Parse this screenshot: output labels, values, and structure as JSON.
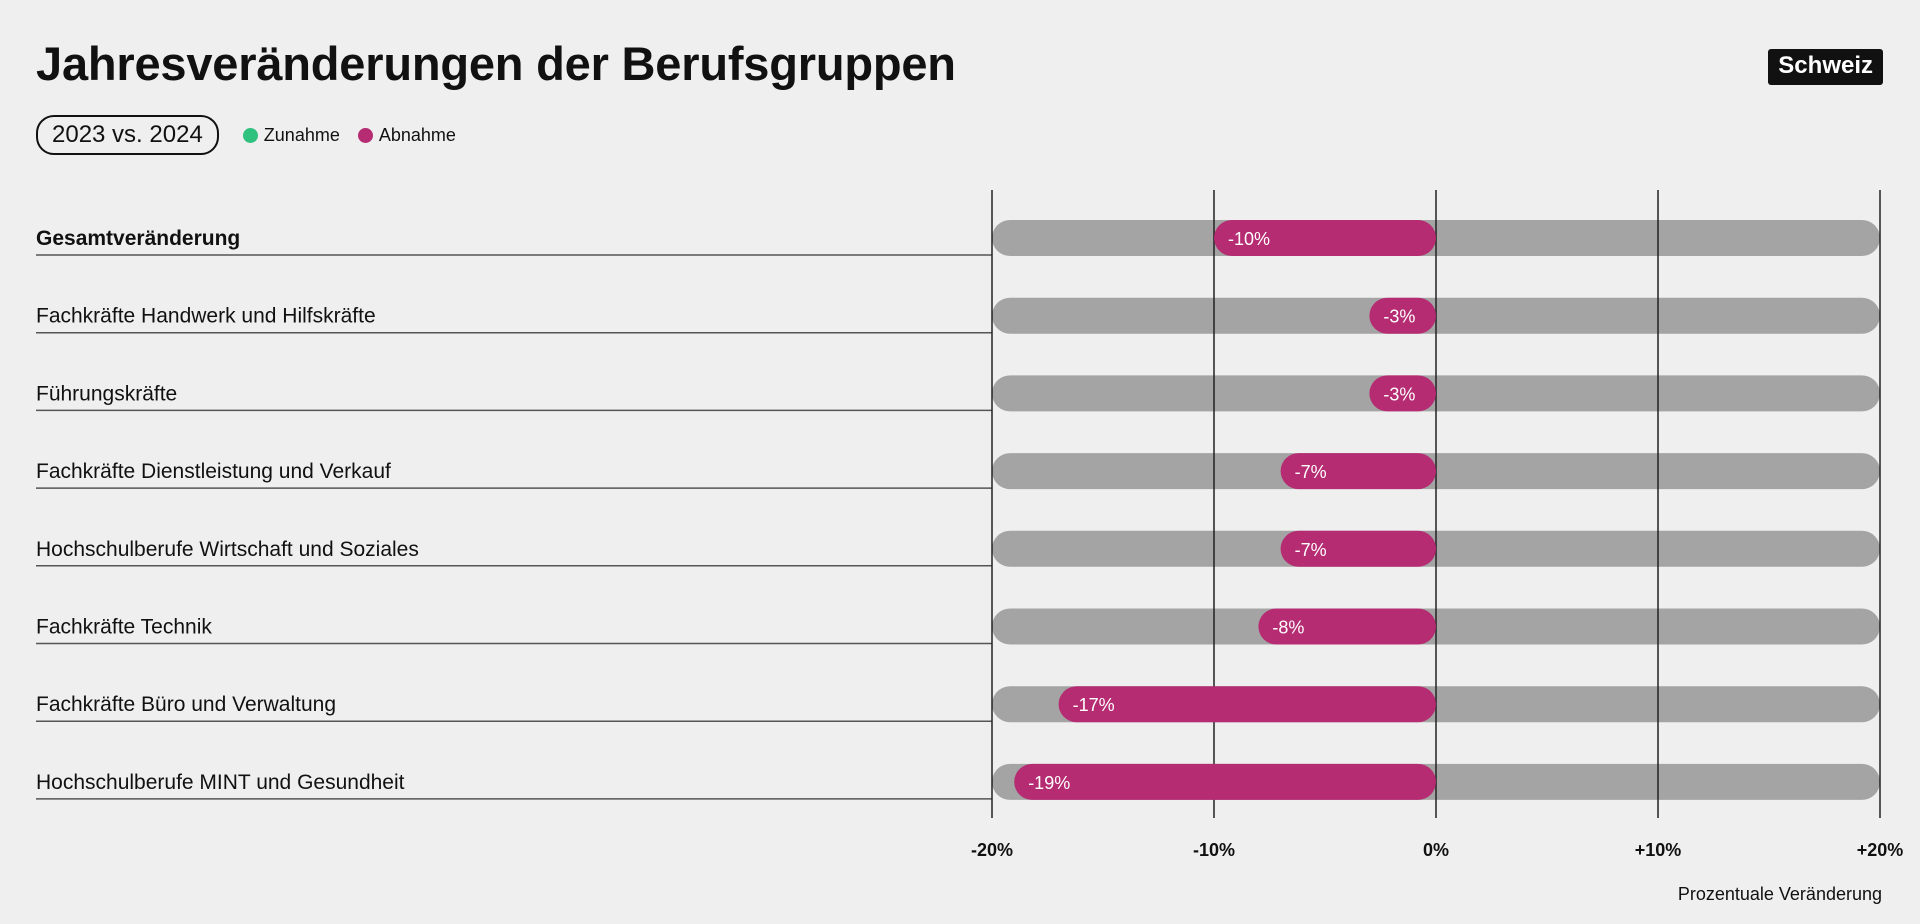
{
  "header": {
    "title": "Jahresveränderungen der Berufsgruppen",
    "region": "Schweiz"
  },
  "legend": {
    "period": "2023 vs. 2024",
    "increase_label": "Zunahme",
    "decrease_label": "Abnahme"
  },
  "colors": {
    "increase": "#2ec27e",
    "decrease": "#b52c72",
    "track": "#a4a4a4",
    "gridline": "#222222"
  },
  "chart_data": {
    "type": "bar",
    "orientation": "horizontal",
    "title": "Jahresveränderungen der Berufsgruppen",
    "xlabel": "Prozentuale Veränderung",
    "ylabel": "",
    "xlim": [
      -20,
      20
    ],
    "xticks": [
      -20,
      -10,
      0,
      10,
      20
    ],
    "xtick_labels": [
      "-20%",
      "-10%",
      "0%",
      "+10%",
      "+20%"
    ],
    "categories": [
      "Gesamtveränderung",
      "Fachkräfte Handwerk und Hilfskräfte",
      "Führungskräfte",
      "Fachkräfte Dienstleistung und Verkauf",
      "Hochschulberufe Wirtschaft und Soziales",
      "Fachkräfte Technik",
      "Fachkräfte Büro und Verwaltung",
      "Hochschulberufe MINT und Gesundheit"
    ],
    "values": [
      -10,
      -3,
      -3,
      -7,
      -7,
      -8,
      -17,
      -19
    ],
    "value_labels": [
      "-10%",
      "-3%",
      "-3%",
      "-7%",
      "-7%",
      "-8%",
      "-17%",
      "-19%"
    ],
    "bold_first_category": true,
    "grid": true
  }
}
